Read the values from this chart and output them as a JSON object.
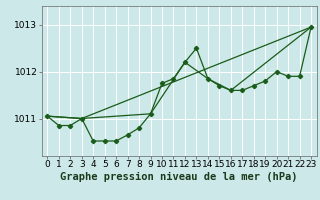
{
  "title": "Graphe pression niveau de la mer (hPa)",
  "bg_color": "#cce8e8",
  "grid_color": "#ffffff",
  "line_color": "#1a5c1a",
  "ylim": [
    1010.2,
    1013.4
  ],
  "yticks": [
    1011,
    1012,
    1013
  ],
  "xlim": [
    -0.5,
    23.5
  ],
  "xticks": [
    0,
    1,
    2,
    3,
    4,
    5,
    6,
    7,
    8,
    9,
    10,
    11,
    12,
    13,
    14,
    15,
    16,
    17,
    18,
    19,
    20,
    21,
    22,
    23
  ],
  "series1_x": [
    0,
    1,
    2,
    3,
    4,
    5,
    6,
    7,
    8,
    9,
    10,
    11,
    12,
    13,
    14,
    15,
    16,
    17,
    18,
    19,
    20,
    21,
    22,
    23
  ],
  "series1_y": [
    1011.05,
    1010.85,
    1010.85,
    1011.0,
    1010.52,
    1010.52,
    1010.52,
    1010.65,
    1010.8,
    1011.1,
    1011.75,
    1011.85,
    1012.2,
    1012.5,
    1011.85,
    1011.7,
    1011.6,
    1011.6,
    1011.7,
    1011.8,
    1012.0,
    1011.9,
    1011.9,
    1012.95
  ],
  "series2_x": [
    0,
    3,
    9,
    12,
    14,
    16,
    23
  ],
  "series2_y": [
    1011.05,
    1011.0,
    1011.1,
    1012.2,
    1011.85,
    1011.6,
    1012.95
  ],
  "series3_x": [
    0,
    3,
    23
  ],
  "series3_y": [
    1011.05,
    1011.0,
    1012.95
  ],
  "xlabel_fontsize": 7.5,
  "tick_fontsize": 6.5,
  "ylabel_fontsize": 6.5
}
